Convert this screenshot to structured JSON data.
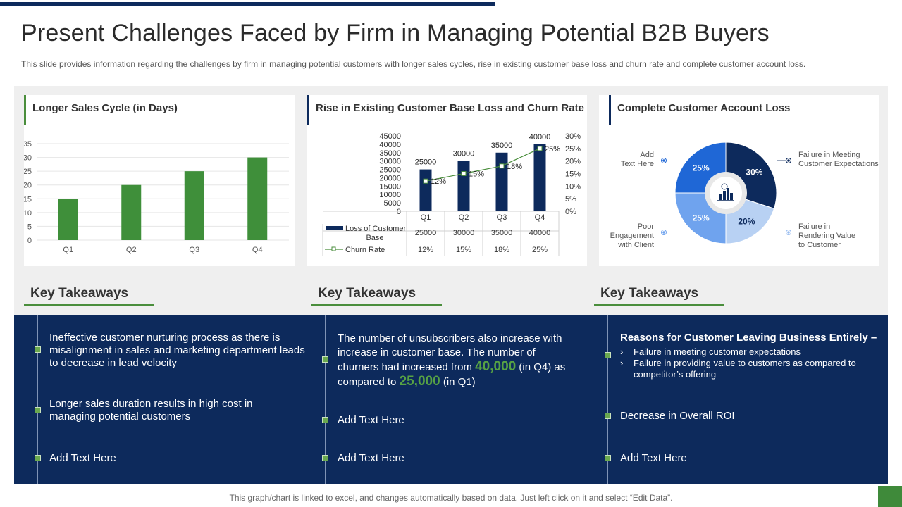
{
  "page": {
    "title": "Present Challenges Faced by Firm in Managing Potential B2B Buyers",
    "subtitle": "This slide provides information regarding the challenges by firm in managing potential customers with longer sales cycles, rise in existing customer base loss and churn rate and complete customer account loss.",
    "footer": "This graph/chart is linked to excel, and changes automatically based on data. Just left click on it and select “Edit Data”."
  },
  "colors": {
    "navy": "#0d2a5c",
    "green": "#4a8e3c",
    "accent_green": "#57a244"
  },
  "chart_data": [
    {
      "type": "bar",
      "title": "Longer Sales Cycle (in Days)",
      "categories": [
        "Q1",
        "Q2",
        "Q3",
        "Q4"
      ],
      "values": [
        15,
        20,
        25,
        30
      ],
      "ylim": [
        0,
        35
      ],
      "yticks": [
        0,
        5,
        10,
        15,
        20,
        25,
        30,
        35
      ],
      "grid": true,
      "color": "#3f8f3a"
    },
    {
      "type": "bar",
      "title": "Rise in Existing Customer Base Loss and Churn Rate",
      "categories": [
        "Q1",
        "Q2",
        "Q3",
        "Q4"
      ],
      "series": [
        {
          "name": "Loss of Customer Base",
          "type": "bar",
          "values": [
            25000,
            30000,
            35000,
            40000
          ],
          "labels": [
            "25000",
            "30000",
            "35000",
            "40000"
          ],
          "color": "#0d2a5c"
        },
        {
          "name": "Churn Rate",
          "type": "line",
          "axis": "right",
          "values": [
            12,
            15,
            18,
            25
          ],
          "labels": [
            "12%",
            "15%",
            "18%",
            "25%"
          ],
          "color": "#4a8e3c"
        }
      ],
      "ylim": [
        0,
        45000
      ],
      "yticks": [
        "0",
        "5000",
        "10000",
        "15000",
        "20000",
        "25000",
        "30000",
        "35000",
        "40000",
        "45000"
      ],
      "y2lim": [
        0,
        30
      ],
      "y2ticks": [
        "0%",
        "5%",
        "10%",
        "15%",
        "20%",
        "25%",
        "30%"
      ],
      "table": {
        "legend_bar": "Loss of Customer Base",
        "legend_line": "Churn Rate",
        "bar_row": [
          "25000",
          "30000",
          "35000",
          "40000"
        ],
        "line_row": [
          "12%",
          "15%",
          "18%",
          "25%"
        ]
      }
    },
    {
      "type": "pie",
      "title": "Complete Customer Account Loss",
      "slices": [
        {
          "label": "Failure in Meeting Customer Expectations",
          "value": 30,
          "text": "30%",
          "color": "#0d2a5c"
        },
        {
          "label": "Failure in Rendering Value to Customer",
          "value": 20,
          "text": "20%",
          "color": "#b8d1f3"
        },
        {
          "label": "Poor Engagement with Client",
          "value": 25,
          "text": "25%",
          "color": "#6fa3ee"
        },
        {
          "label": "Add Text Here",
          "value": 25,
          "text": "25%",
          "color": "#1f67d6"
        }
      ],
      "labels_display": {
        "tr": [
          "Failure in Meeting",
          "Customer Expectations"
        ],
        "br": [
          "Failure in",
          "Rendering Value",
          "to Customer"
        ],
        "bl": [
          "Poor",
          "Engagement",
          "with Client"
        ],
        "tl": [
          "Add",
          "Text Here"
        ]
      },
      "center_icon": "chart-dollar-icon"
    }
  ],
  "takeaways": [
    {
      "heading": "Key Takeaways",
      "items": [
        "Ineffective customer nurturing process as there is misalignment in sales and marketing department leads to decrease in lead velocity",
        "Longer sales duration results in high cost in managing potential customers",
        "Add Text Here"
      ]
    },
    {
      "heading": "Key Takeaways",
      "item1": {
        "part1": "The number of unsubscribers also increase with increase in customer base. The number of churners had increased from ",
        "big1": "40,000",
        "part2": " (in Q4) as compared to ",
        "big2": "25,000",
        "part3": " (in Q1)"
      },
      "items": [
        "Add Text Here",
        "Add Text Here"
      ]
    },
    {
      "heading": "Key Takeaways",
      "reasons_title": "Reasons for Customer Leaving Business Entirely –",
      "chevron": "›",
      "reasons": [
        "Failure in meeting customer expectations",
        "Failure in providing value to customers as compared to competitor’s offering"
      ],
      "items": [
        "Decrease in Overall ROI",
        "Add Text Here"
      ]
    }
  ]
}
